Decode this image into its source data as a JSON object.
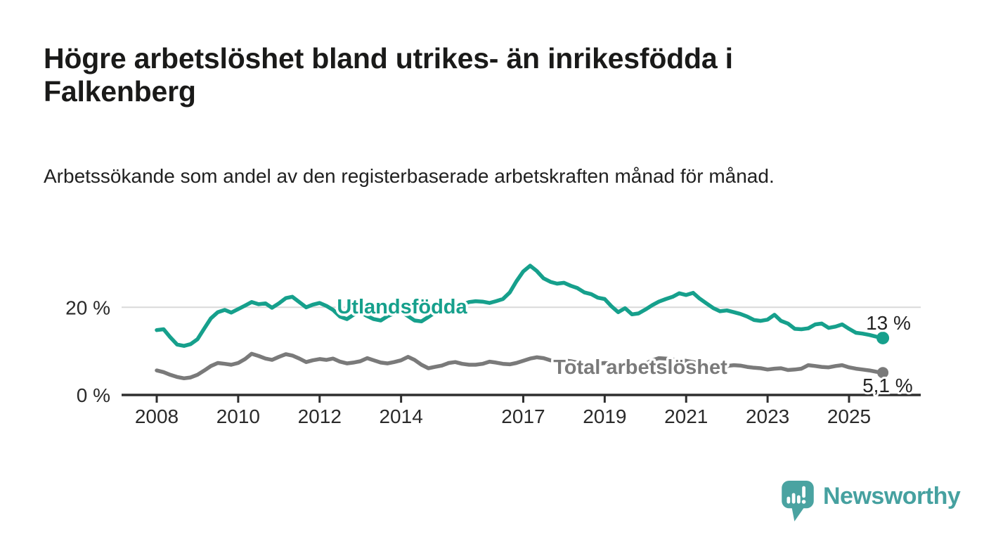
{
  "title": "Högre arbetslöshet bland utrikes- än inrikesfödda i Falkenberg",
  "subtitle": "Arbetssökande som andel av den registerbaserade arbetskraften månad för månad.",
  "brand": {
    "name": "Newsworthy",
    "logo_icon": "bar-chart-speech-bubble-icon"
  },
  "chart_data": {
    "type": "line",
    "title": "Högre arbetslöshet bland utrikes- än inrikesfödda i Falkenberg",
    "subtitle": "Arbetssökande som andel av den registerbaserade arbetskraften månad för månad.",
    "unit": "%",
    "grid": "horizontal gridline at 20 % only",
    "legend_position": "inline labels on lines, end-value labels at right",
    "x_axis": {
      "label": "",
      "ticks": [
        {
          "year": 2008,
          "label": "2008"
        },
        {
          "year": 2010,
          "label": "2010"
        },
        {
          "year": 2012,
          "label": "2012"
        },
        {
          "year": 2014,
          "label": "2014"
        },
        {
          "year": 2017,
          "label": "2017"
        },
        {
          "year": 2019,
          "label": "2019"
        },
        {
          "year": 2021,
          "label": "2021"
        },
        {
          "year": 2023,
          "label": "2023"
        },
        {
          "year": 2025,
          "label": "2025"
        }
      ]
    },
    "y_axis": {
      "label": "",
      "range": [
        0,
        32
      ],
      "ticks": [
        {
          "value": 20,
          "label": "20 %"
        },
        {
          "value": 0,
          "label": "0 %"
        }
      ]
    },
    "series": [
      {
        "name": "Utlandsfödda",
        "color": "#16a08c",
        "line_width": 5.5,
        "end_label": "13 %",
        "end_value": 13,
        "points": [
          [
            2008.0,
            14.8
          ],
          [
            2008.17,
            15.0
          ],
          [
            2008.33,
            13.2
          ],
          [
            2008.5,
            11.5
          ],
          [
            2008.67,
            11.2
          ],
          [
            2008.83,
            11.6
          ],
          [
            2009.0,
            12.7
          ],
          [
            2009.17,
            15.2
          ],
          [
            2009.33,
            17.5
          ],
          [
            2009.5,
            18.9
          ],
          [
            2009.67,
            19.4
          ],
          [
            2009.83,
            18.8
          ],
          [
            2010.0,
            19.6
          ],
          [
            2010.17,
            20.4
          ],
          [
            2010.33,
            21.2
          ],
          [
            2010.5,
            20.7
          ],
          [
            2010.67,
            20.9
          ],
          [
            2010.83,
            19.9
          ],
          [
            2011.0,
            20.9
          ],
          [
            2011.17,
            22.1
          ],
          [
            2011.33,
            22.4
          ],
          [
            2011.5,
            21.2
          ],
          [
            2011.67,
            20.0
          ],
          [
            2011.83,
            20.6
          ],
          [
            2012.0,
            21.0
          ],
          [
            2012.17,
            20.3
          ],
          [
            2012.33,
            19.4
          ],
          [
            2012.5,
            17.9
          ],
          [
            2012.67,
            17.3
          ],
          [
            2012.83,
            18.3
          ],
          [
            2013.0,
            18.9
          ],
          [
            2013.17,
            18.0
          ],
          [
            2013.33,
            17.3
          ],
          [
            2013.5,
            17.0
          ],
          [
            2013.67,
            18.0
          ],
          [
            2013.83,
            18.6
          ],
          [
            2014.0,
            19.0
          ],
          [
            2014.17,
            18.0
          ],
          [
            2014.33,
            17.0
          ],
          [
            2014.5,
            16.8
          ],
          [
            2014.67,
            17.8
          ],
          [
            2014.83,
            18.8
          ],
          [
            2015.0,
            19.4
          ],
          [
            2015.17,
            19.0
          ],
          [
            2015.33,
            19.8
          ],
          [
            2015.5,
            20.6
          ],
          [
            2015.67,
            21.2
          ],
          [
            2015.83,
            21.4
          ],
          [
            2016.0,
            21.3
          ],
          [
            2016.17,
            21.0
          ],
          [
            2016.33,
            21.4
          ],
          [
            2016.5,
            21.9
          ],
          [
            2016.67,
            23.4
          ],
          [
            2016.83,
            25.9
          ],
          [
            2017.0,
            28.2
          ],
          [
            2017.17,
            29.5
          ],
          [
            2017.33,
            28.3
          ],
          [
            2017.5,
            26.6
          ],
          [
            2017.67,
            25.8
          ],
          [
            2017.83,
            25.4
          ],
          [
            2018.0,
            25.6
          ],
          [
            2018.17,
            24.9
          ],
          [
            2018.33,
            24.4
          ],
          [
            2018.5,
            23.4
          ],
          [
            2018.67,
            23.0
          ],
          [
            2018.83,
            22.2
          ],
          [
            2019.0,
            21.9
          ],
          [
            2019.17,
            20.2
          ],
          [
            2019.33,
            18.9
          ],
          [
            2019.5,
            19.8
          ],
          [
            2019.67,
            18.4
          ],
          [
            2019.83,
            18.6
          ],
          [
            2020.0,
            19.5
          ],
          [
            2020.17,
            20.5
          ],
          [
            2020.33,
            21.3
          ],
          [
            2020.5,
            21.9
          ],
          [
            2020.67,
            22.4
          ],
          [
            2020.83,
            23.2
          ],
          [
            2021.0,
            22.8
          ],
          [
            2021.17,
            23.3
          ],
          [
            2021.33,
            22.0
          ],
          [
            2021.5,
            20.9
          ],
          [
            2021.67,
            19.8
          ],
          [
            2021.83,
            19.1
          ],
          [
            2022.0,
            19.3
          ],
          [
            2022.17,
            18.9
          ],
          [
            2022.33,
            18.5
          ],
          [
            2022.5,
            17.9
          ],
          [
            2022.67,
            17.1
          ],
          [
            2022.83,
            16.9
          ],
          [
            2023.0,
            17.2
          ],
          [
            2023.17,
            18.3
          ],
          [
            2023.33,
            16.9
          ],
          [
            2023.5,
            16.3
          ],
          [
            2023.67,
            15.1
          ],
          [
            2023.83,
            15.0
          ],
          [
            2024.0,
            15.2
          ],
          [
            2024.17,
            16.1
          ],
          [
            2024.33,
            16.3
          ],
          [
            2024.5,
            15.3
          ],
          [
            2024.67,
            15.6
          ],
          [
            2024.83,
            16.1
          ],
          [
            2025.0,
            15.1
          ],
          [
            2025.17,
            14.2
          ],
          [
            2025.33,
            14.0
          ],
          [
            2025.5,
            13.7
          ],
          [
            2025.67,
            13.3
          ],
          [
            2025.83,
            13.0
          ]
        ]
      },
      {
        "name": "Total arbetslöshet",
        "color": "#7a7a7a",
        "line_width": 5.5,
        "end_label": "5,1 %",
        "end_value": 5.1,
        "points": [
          [
            2008.0,
            5.6
          ],
          [
            2008.17,
            5.2
          ],
          [
            2008.33,
            4.6
          ],
          [
            2008.5,
            4.1
          ],
          [
            2008.67,
            3.8
          ],
          [
            2008.83,
            4.0
          ],
          [
            2009.0,
            4.6
          ],
          [
            2009.17,
            5.6
          ],
          [
            2009.33,
            6.6
          ],
          [
            2009.5,
            7.3
          ],
          [
            2009.67,
            7.1
          ],
          [
            2009.83,
            6.9
          ],
          [
            2010.0,
            7.3
          ],
          [
            2010.17,
            8.2
          ],
          [
            2010.33,
            9.4
          ],
          [
            2010.5,
            8.9
          ],
          [
            2010.67,
            8.3
          ],
          [
            2010.83,
            8.0
          ],
          [
            2011.0,
            8.7
          ],
          [
            2011.17,
            9.3
          ],
          [
            2011.33,
            9.0
          ],
          [
            2011.5,
            8.3
          ],
          [
            2011.67,
            7.5
          ],
          [
            2011.83,
            7.9
          ],
          [
            2012.0,
            8.2
          ],
          [
            2012.17,
            8.0
          ],
          [
            2012.33,
            8.3
          ],
          [
            2012.5,
            7.6
          ],
          [
            2012.67,
            7.2
          ],
          [
            2012.83,
            7.4
          ],
          [
            2013.0,
            7.7
          ],
          [
            2013.17,
            8.4
          ],
          [
            2013.33,
            7.9
          ],
          [
            2013.5,
            7.4
          ],
          [
            2013.67,
            7.2
          ],
          [
            2013.83,
            7.5
          ],
          [
            2014.0,
            7.9
          ],
          [
            2014.17,
            8.7
          ],
          [
            2014.33,
            8.0
          ],
          [
            2014.5,
            6.9
          ],
          [
            2014.67,
            6.1
          ],
          [
            2014.83,
            6.4
          ],
          [
            2015.0,
            6.7
          ],
          [
            2015.17,
            7.3
          ],
          [
            2015.33,
            7.5
          ],
          [
            2015.5,
            7.1
          ],
          [
            2015.67,
            6.9
          ],
          [
            2015.83,
            6.9
          ],
          [
            2016.0,
            7.1
          ],
          [
            2016.17,
            7.6
          ],
          [
            2016.33,
            7.4
          ],
          [
            2016.5,
            7.1
          ],
          [
            2016.67,
            7.0
          ],
          [
            2016.83,
            7.3
          ],
          [
            2017.0,
            7.8
          ],
          [
            2017.17,
            8.3
          ],
          [
            2017.33,
            8.6
          ],
          [
            2017.5,
            8.4
          ],
          [
            2017.67,
            7.9
          ],
          [
            2017.83,
            7.7
          ],
          [
            2018.0,
            7.9
          ],
          [
            2018.17,
            7.7
          ],
          [
            2018.33,
            7.4
          ],
          [
            2018.5,
            7.1
          ],
          [
            2018.67,
            7.0
          ],
          [
            2018.83,
            7.1
          ],
          [
            2019.0,
            7.3
          ],
          [
            2019.17,
            7.1
          ],
          [
            2019.33,
            6.9
          ],
          [
            2019.5,
            6.7
          ],
          [
            2019.67,
            6.6
          ],
          [
            2019.83,
            6.8
          ],
          [
            2020.0,
            7.1
          ],
          [
            2020.17,
            7.9
          ],
          [
            2020.33,
            8.4
          ],
          [
            2020.5,
            8.3
          ],
          [
            2020.67,
            8.1
          ],
          [
            2020.83,
            7.9
          ],
          [
            2021.0,
            7.8
          ],
          [
            2021.17,
            7.5
          ],
          [
            2021.33,
            7.2
          ],
          [
            2021.5,
            7.0
          ],
          [
            2021.67,
            6.8
          ],
          [
            2021.83,
            6.7
          ],
          [
            2022.0,
            6.6
          ],
          [
            2022.17,
            6.8
          ],
          [
            2022.33,
            6.7
          ],
          [
            2022.5,
            6.4
          ],
          [
            2022.67,
            6.2
          ],
          [
            2022.83,
            6.1
          ],
          [
            2023.0,
            5.8
          ],
          [
            2023.17,
            6.0
          ],
          [
            2023.33,
            6.1
          ],
          [
            2023.5,
            5.7
          ],
          [
            2023.67,
            5.8
          ],
          [
            2023.83,
            6.0
          ],
          [
            2024.0,
            6.8
          ],
          [
            2024.17,
            6.6
          ],
          [
            2024.33,
            6.4
          ],
          [
            2024.5,
            6.3
          ],
          [
            2024.67,
            6.6
          ],
          [
            2024.83,
            6.8
          ],
          [
            2025.0,
            6.3
          ],
          [
            2025.17,
            6.0
          ],
          [
            2025.33,
            5.8
          ],
          [
            2025.5,
            5.6
          ],
          [
            2025.67,
            5.3
          ],
          [
            2025.83,
            5.1
          ]
        ]
      }
    ]
  }
}
